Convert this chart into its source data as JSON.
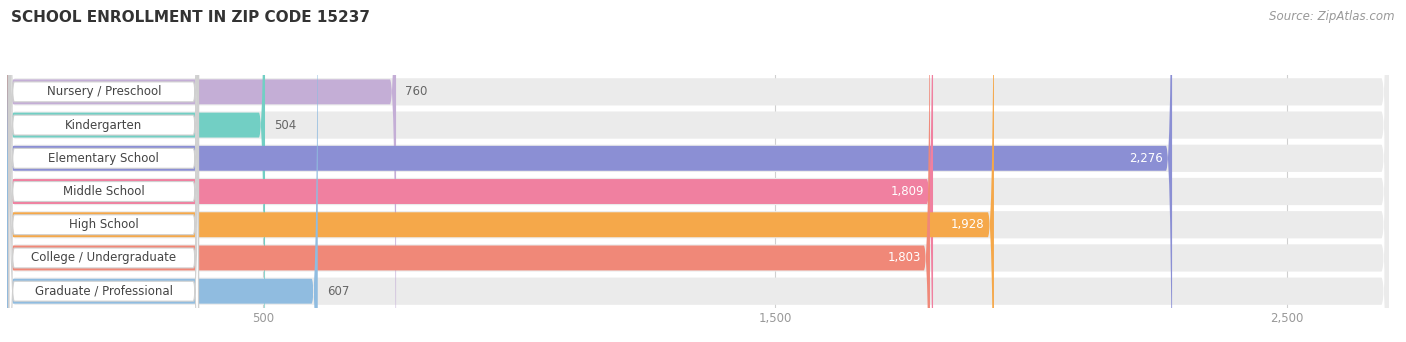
{
  "title": "SCHOOL ENROLLMENT IN ZIP CODE 15237",
  "source": "Source: ZipAtlas.com",
  "categories": [
    "Nursery / Preschool",
    "Kindergarten",
    "Elementary School",
    "Middle School",
    "High School",
    "College / Undergraduate",
    "Graduate / Professional"
  ],
  "values": [
    760,
    504,
    2276,
    1809,
    1928,
    1803,
    607
  ],
  "bar_colors": [
    "#c4aed6",
    "#72cfc4",
    "#8b8fd4",
    "#f080a0",
    "#f5a84a",
    "#f08878",
    "#90bce0"
  ],
  "xlim_max": 2700,
  "xticks": [
    500,
    1500,
    2500
  ],
  "xtick_labels": [
    "500",
    "1,500",
    "2,500"
  ],
  "background_color": "#ffffff",
  "bar_bg_color": "#ebebeb",
  "title_fontsize": 11,
  "label_fontsize": 8.5,
  "value_fontsize": 8.5,
  "source_fontsize": 8.5
}
